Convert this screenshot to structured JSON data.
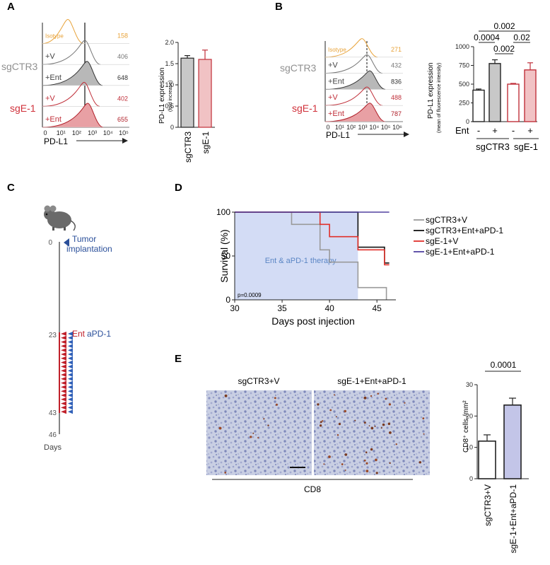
{
  "panels": {
    "A": {
      "label": "A",
      "flow": {
        "group_labels": [
          "sgCTR3",
          "sgE-1"
        ],
        "rows": [
          {
            "name": "Isotype",
            "value": "158",
            "color": "#e8a33a"
          },
          {
            "name": "+V",
            "value": "406",
            "color": "#777777"
          },
          {
            "name": "+Ent",
            "value": "648",
            "color": "#333333"
          },
          {
            "name": "+V",
            "value": "402",
            "color": "#c0303a"
          },
          {
            "name": "+Ent",
            "value": "655",
            "color": "#b0202a"
          }
        ],
        "x_ticks": [
          "0",
          "10¹",
          "10²",
          "10³",
          "10⁴",
          "10⁵"
        ],
        "xlabel": "PD-L1"
      },
      "bar": {
        "categories": [
          "sgCTR3",
          "sgE-1"
        ],
        "values": [
          1.63,
          1.6
        ],
        "errors": [
          0.06,
          0.22
        ],
        "ylabel": "PD-L1 expression",
        "ylabel_sub": "(fold increase)",
        "ylim": [
          0,
          2
        ],
        "y_ticks": [
          "0",
          "0.5",
          "1.0",
          "1.5",
          "2.0"
        ]
      }
    },
    "B": {
      "label": "B",
      "flow": {
        "group_labels": [
          "sgCTR3",
          "sgE-1"
        ],
        "rows": [
          {
            "name": "Isotype",
            "value": "271",
            "color": "#e8a33a"
          },
          {
            "name": "+V",
            "value": "432",
            "color": "#777777"
          },
          {
            "name": "+Ent",
            "value": "836",
            "color": "#333333"
          },
          {
            "name": "+V",
            "value": "488",
            "color": "#c0303a"
          },
          {
            "name": "+Ent",
            "value": "787",
            "color": "#b0202a"
          }
        ],
        "x_ticks": [
          "0",
          "10¹",
          "10²",
          "10³",
          "10⁴",
          "10⁵",
          "10⁶"
        ],
        "xlabel": "PD-L1"
      },
      "bar": {
        "values": [
          420,
          775,
          500,
          690
        ],
        "errors": [
          15,
          50,
          10,
          95
        ],
        "ylabel": "PD-L1 expression",
        "ylabel_sub": "(mean of fluorescence intensity)",
        "ylim": [
          0,
          1000
        ],
        "y_ticks": [
          "0",
          "250",
          "500",
          "750",
          "1000"
        ],
        "ent_label": "Ent",
        "ent_signs": [
          "-",
          "+",
          "-",
          "+"
        ],
        "groups": [
          "sgCTR3",
          "sgE-1"
        ],
        "pvalues": [
          "0.002",
          "0.0004",
          "0.02",
          "0.002"
        ]
      }
    },
    "C": {
      "label": "C",
      "tumor_label_1": "Tumor",
      "tumor_label_2": "implantation",
      "day_ticks": [
        "0",
        "23",
        "43",
        "46"
      ],
      "ent_label": "Ent",
      "apd1_label": "aPD-1",
      "days_label": "Days"
    },
    "D": {
      "label": "D",
      "chart_data": {
        "type": "line",
        "xlabel": "Days post injection",
        "ylabel": "Survival (%)",
        "xlim": [
          30,
          47
        ],
        "ylim": [
          0,
          100
        ],
        "x_ticks": [
          "30",
          "35",
          "40",
          "45"
        ],
        "y_ticks": [
          "0",
          "50",
          "100"
        ],
        "shade_label": "Ent & aPD-1 therapy",
        "shade_range": [
          30,
          43
        ],
        "pvalue": "p=0.0009",
        "series": [
          {
            "name": "sgCTR3+V",
            "color": "#9a9a9a",
            "points": [
              [
                30,
                100
              ],
              [
                36,
                100
              ],
              [
                36,
                86
              ],
              [
                39,
                86
              ],
              [
                39,
                57
              ],
              [
                40,
                57
              ],
              [
                40,
                43
              ],
              [
                43,
                43
              ],
              [
                43,
                14
              ],
              [
                46,
                14
              ],
              [
                46,
                0
              ]
            ]
          },
          {
            "name": "sgCTR3+Ent+aPD-1",
            "color": "#111111",
            "points": [
              [
                30,
                100
              ],
              [
                43,
                100
              ],
              [
                43,
                60
              ],
              [
                45.8,
                60
              ],
              [
                45.8,
                42
              ],
              [
                46.3,
                42
              ]
            ]
          },
          {
            "name": "sgE-1+V",
            "color": "#e0302a",
            "points": [
              [
                30,
                100
              ],
              [
                39,
                100
              ],
              [
                39,
                86
              ],
              [
                40,
                86
              ],
              [
                40,
                72
              ],
              [
                43,
                72
              ],
              [
                43,
                57
              ],
              [
                45.8,
                57
              ],
              [
                45.8,
                40
              ],
              [
                46.3,
                40
              ]
            ]
          },
          {
            "name": "sgE-1+Ent+aPD-1",
            "color": "#5040a0",
            "points": [
              [
                30,
                100
              ],
              [
                46.3,
                100
              ]
            ]
          }
        ]
      }
    },
    "E": {
      "label": "E",
      "images": [
        "sgCTR3+V",
        "sgE-1+Ent+aPD-1"
      ],
      "stain_label": "CD8",
      "bar": {
        "categories": [
          "sgCTR3+V",
          "sgE-1+Ent+aPD-1"
        ],
        "values": [
          12,
          23.5
        ],
        "errors": [
          2,
          2.2
        ],
        "ylabel": "CD8⁺ cells /mm²",
        "ylim": [
          0,
          30
        ],
        "y_ticks": [
          "0",
          "10",
          "20",
          "30"
        ],
        "pvalue": "0.0001"
      }
    }
  }
}
